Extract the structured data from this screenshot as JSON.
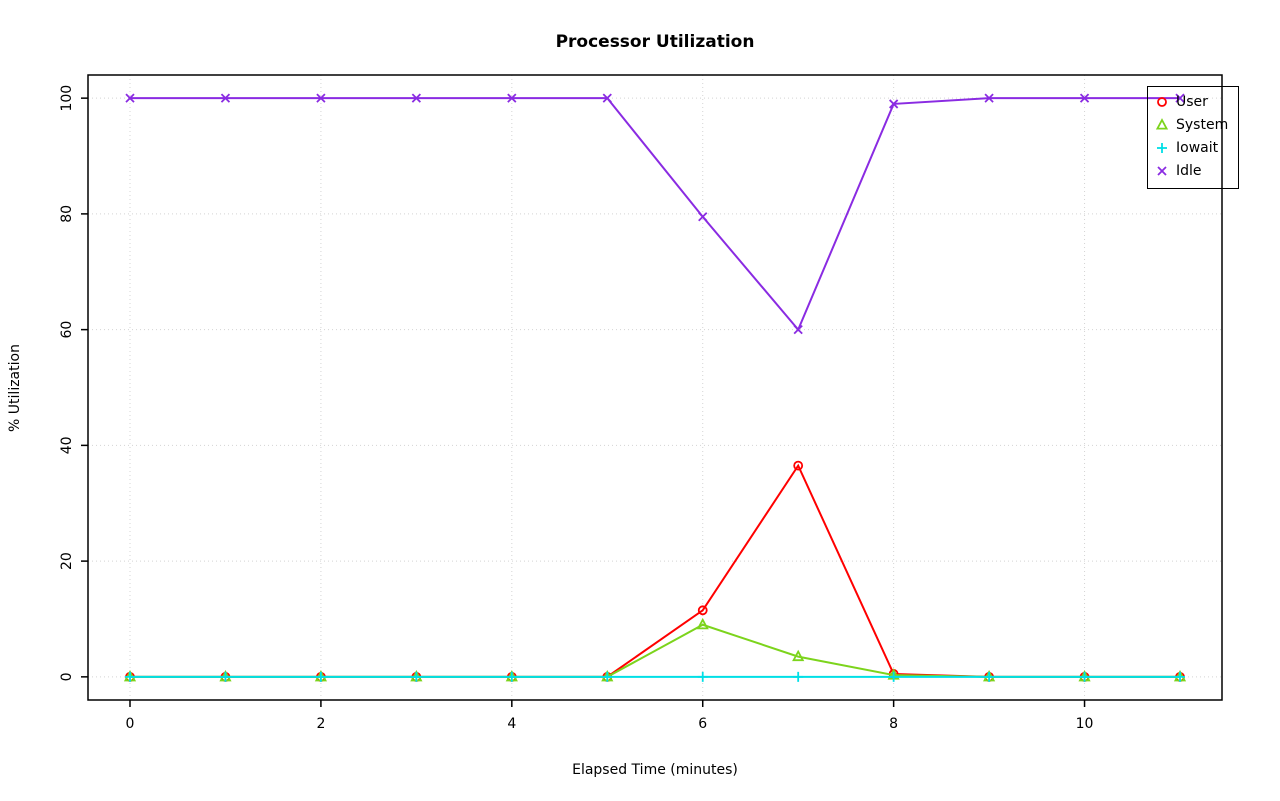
{
  "chart_data": {
    "type": "line",
    "title": "Processor Utilization",
    "xlabel": "Elapsed Time (minutes)",
    "ylabel": "% Utilization",
    "x": [
      0,
      1,
      2,
      3,
      4,
      5,
      6,
      7,
      8,
      9,
      10,
      11
    ],
    "series": [
      {
        "name": "User",
        "color": "#ff0000",
        "marker": "circle",
        "values": [
          0,
          0,
          0,
          0,
          0,
          0,
          11.5,
          36.5,
          0.5,
          0,
          0,
          0
        ]
      },
      {
        "name": "System",
        "color": "#7cd41c",
        "marker": "triangle",
        "values": [
          0,
          0,
          0,
          0,
          0,
          0,
          9,
          3.5,
          0.3,
          0,
          0,
          0
        ]
      },
      {
        "name": "Iowait",
        "color": "#00dfe6",
        "marker": "plus",
        "values": [
          0,
          0,
          0,
          0,
          0,
          0,
          0,
          0,
          0,
          0,
          0,
          0
        ]
      },
      {
        "name": "Idle",
        "color": "#8a2be2",
        "marker": "x",
        "values": [
          100,
          100,
          100,
          100,
          100,
          100,
          79.5,
          60,
          99,
          100,
          100,
          100
        ]
      }
    ],
    "x_ticks": [
      0,
      2,
      4,
      6,
      8,
      10
    ],
    "y_ticks": [
      0,
      20,
      40,
      60,
      80,
      100
    ],
    "xlim": [
      -0.44,
      11.44
    ],
    "ylim": [
      -4,
      104
    ],
    "grid": true,
    "legend_position": "top-right"
  }
}
